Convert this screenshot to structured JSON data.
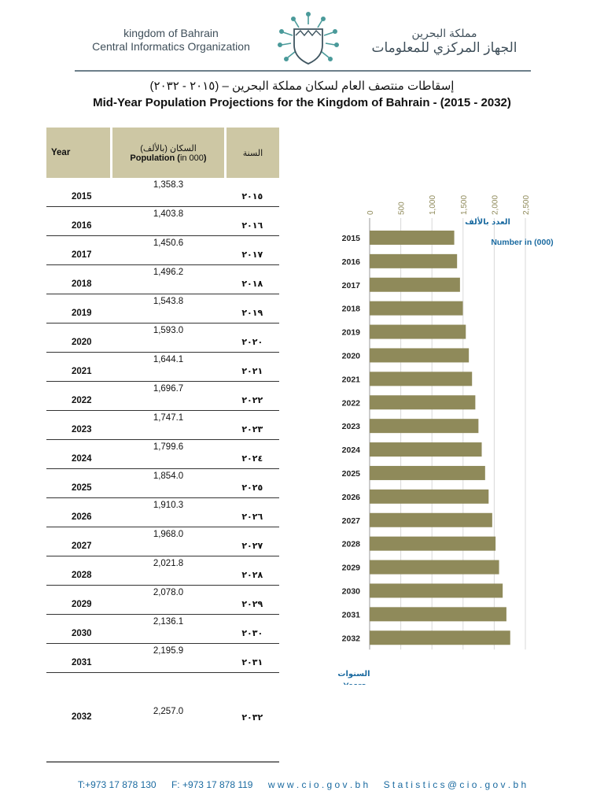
{
  "header": {
    "org_en_line1": "kingdom of Bahrain",
    "org_en_line2": "Central Informatics Organization",
    "org_ar_line1": "مملكة البحرين",
    "org_ar_line2": "الجهاز المركزي للمعلومات"
  },
  "title_ar": "إسقاطات منتصف العام لسكان مملكة البحرين – (٢٠١٥ - ٢٠٣٢)",
  "title_en": "Mid-Year Population Projections for the Kingdom of Bahrain - (2015 - 2032)",
  "table": {
    "col_year": "Year",
    "col_pop_ar": "السكان (بالألف)",
    "col_pop_en_bold": "Population (",
    "col_pop_en_unit": "in 000",
    "col_pop_en_close": ")",
    "col_year_ar": "السنة",
    "rows": [
      {
        "year": "2015",
        "value": "1,358.3",
        "year_ar": "٢٠١٥"
      },
      {
        "year": "2016",
        "value": "1,403.8",
        "year_ar": "٢٠١٦"
      },
      {
        "year": "2017",
        "value": "1,450.6",
        "year_ar": "٢٠١٧"
      },
      {
        "year": "2018",
        "value": "1,496.2",
        "year_ar": "٢٠١٨"
      },
      {
        "year": "2019",
        "value": "1,543.8",
        "year_ar": "٢٠١٩"
      },
      {
        "year": "2020",
        "value": "1,593.0",
        "year_ar": "٢٠٢٠"
      },
      {
        "year": "2021",
        "value": "1,644.1",
        "year_ar": "٢٠٢١"
      },
      {
        "year": "2022",
        "value": "1,696.7",
        "year_ar": "٢٠٢٢"
      },
      {
        "year": "2023",
        "value": "1,747.1",
        "year_ar": "٢٠٢٣"
      },
      {
        "year": "2024",
        "value": "1,799.6",
        "year_ar": "٢٠٢٤"
      },
      {
        "year": "2025",
        "value": "1,854.0",
        "year_ar": "٢٠٢٥"
      },
      {
        "year": "2026",
        "value": "1,910.3",
        "year_ar": "٢٠٢٦"
      },
      {
        "year": "2027",
        "value": "1,968.0",
        "year_ar": "٢٠٢٧"
      },
      {
        "year": "2028",
        "value": "2,021.8",
        "year_ar": "٢٠٢٨"
      },
      {
        "year": "2029",
        "value": "2,078.0",
        "year_ar": "٢٠٢٩"
      },
      {
        "year": "2030",
        "value": "2,136.1",
        "year_ar": "٢٠٣٠"
      },
      {
        "year": "2031",
        "value": "2,195.9",
        "year_ar": "٢٠٣١"
      },
      {
        "year": "2032",
        "value": "2,257.0",
        "year_ar": "٢٠٣٢"
      }
    ]
  },
  "chart_data": {
    "type": "bar",
    "orientation": "horizontal",
    "categories": [
      "2015",
      "2016",
      "2017",
      "2018",
      "2019",
      "2020",
      "2021",
      "2022",
      "2023",
      "2024",
      "2025",
      "2026",
      "2027",
      "2028",
      "2029",
      "2030",
      "2031",
      "2032"
    ],
    "values": [
      1358.3,
      1403.8,
      1450.6,
      1496.2,
      1543.8,
      1593.0,
      1644.1,
      1696.7,
      1747.1,
      1799.6,
      1854.0,
      1910.3,
      1968.0,
      2021.8,
      2078.0,
      2136.1,
      2195.9,
      2257.0
    ],
    "xlabel_ar": "العدد بالألف",
    "xlabel_en": "Number in (000)",
    "ylabel_ar": "السنوات",
    "ylabel_en": "Years",
    "xlim": [
      0,
      2500
    ],
    "xticks": [
      0,
      500,
      1000,
      1500,
      2000,
      2500
    ],
    "xtick_labels": [
      "0",
      "500",
      "1,000",
      "1,500",
      "2,000",
      "2,500"
    ],
    "bar_color": "#8f8a5a",
    "label_color": "#1a6aa0",
    "tick_color": "#8f8a5a",
    "grid": true
  },
  "footer": {
    "tel": "T:+973 17 878 130",
    "fax": "F: +973 17 878 119",
    "web": "w w w . c i o . g o v . b h",
    "email": "S t a t i s t i c s @ c i o . g o v . b h"
  }
}
